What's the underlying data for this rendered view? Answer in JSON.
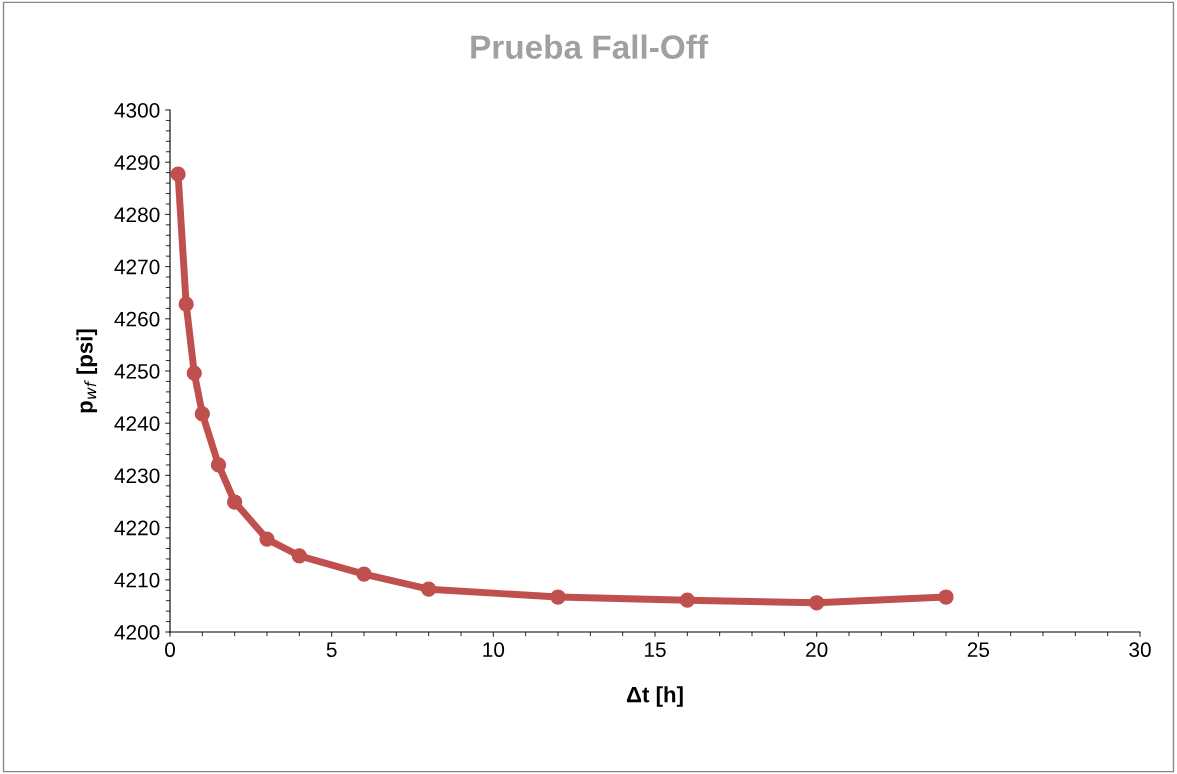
{
  "chart_data": {
    "type": "line",
    "title": "Prueba Fall-Off",
    "xlabel": "Δt [h]",
    "ylabel": "p$_{wf}$ [psi]",
    "x": [
      0.25,
      0.5,
      0.75,
      1,
      1.5,
      2,
      3,
      4,
      6,
      8,
      12,
      16,
      20,
      24
    ],
    "series": [
      {
        "color": "#c0504d",
        "values": [
          4287.7,
          4262.8,
          4249.6,
          4241.8,
          4232,
          4224.9,
          4217.8,
          4214.6,
          4211.1,
          4208.2,
          4206.7,
          4206.1,
          4205.6,
          4206.7
        ]
      }
    ],
    "xlim": [
      0,
      30
    ],
    "xticks": [
      0,
      5,
      10,
      15,
      20,
      25,
      30
    ],
    "ylim": [
      4200,
      4300
    ],
    "yticks": [
      4200,
      4210,
      4220,
      4230,
      4240,
      4250,
      4260,
      4270,
      4280,
      4290,
      4300
    ],
    "grid": false,
    "legend": false,
    "marker": "circle",
    "line_style": "solid"
  }
}
